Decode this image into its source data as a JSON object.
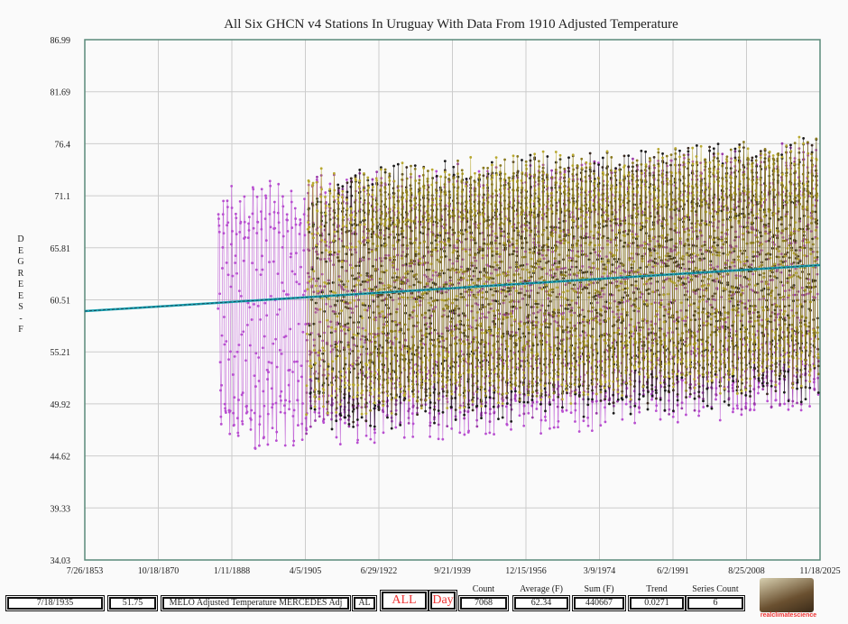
{
  "chart_data": {
    "type": "line",
    "title": "All Six GHCN v4 Stations In Uruguay With Data From 1910 Adjusted Temperature",
    "ylabel": "DEGREES - F",
    "xlabel": "",
    "ylim": [
      34.03,
      86.99
    ],
    "yticks": [
      "86.99",
      "81.69",
      "76.4",
      "71.1",
      "65.81",
      "60.51",
      "55.21",
      "49.92",
      "44.62",
      "39.33",
      "34.03"
    ],
    "xticks": [
      "7/26/1853",
      "10/18/1870",
      "1/11/1888",
      "4/5/1905",
      "6/29/1922",
      "9/21/1939",
      "12/15/1956",
      "3/9/1974",
      "6/2/1991",
      "8/25/2008",
      "11/18/2025"
    ],
    "xlim_years": [
      1853.57,
      2025.88
    ],
    "grid": true,
    "series": [
      {
        "name": "purple-1",
        "color": "#b84fd0",
        "start": 1884.8,
        "end": 2025.5,
        "mean": 60.6,
        "amp": 11.5
      },
      {
        "name": "purple-2",
        "color": "#9a3aa8",
        "start": 1905.5,
        "end": 2025.5,
        "mean": 61.5,
        "amp": 11
      },
      {
        "name": "black-1",
        "color": "#1a1a1a",
        "start": 1906,
        "end": 2025.5,
        "mean": 61.8,
        "amp": 11
      },
      {
        "name": "black-2",
        "color": "#3a2a20",
        "start": 1912,
        "end": 2025.5,
        "mean": 62.2,
        "amp": 10.5
      },
      {
        "name": "olive-1",
        "color": "#b8a830",
        "start": 1905.5,
        "end": 2025.5,
        "mean": 62.6,
        "amp": 10.5
      },
      {
        "name": "olive-2",
        "color": "#8a7a20",
        "start": 1920,
        "end": 2025.5,
        "mean": 62.8,
        "amp": 10
      }
    ],
    "trend": {
      "color": "#1aa0b0",
      "y_start": 59.36,
      "y_end": 64.04,
      "slope": 0.0271
    }
  },
  "status": {
    "date": "7/18/1935",
    "value": "51.75",
    "series_name": "MELO Adjusted Temperature MERCEDES Adj",
    "code": "AL",
    "all": "ALL",
    "day": "Day",
    "count_label": "Count",
    "count": "7068",
    "avg_label": "Average (F)",
    "avg": "62.34",
    "sum_label": "Sum (F)",
    "sum": "440667",
    "trend_label": "Trend",
    "trend": "0.0271",
    "series_count_label": "Series Count",
    "series_count": "6",
    "logo_text": "realclimatescience"
  }
}
